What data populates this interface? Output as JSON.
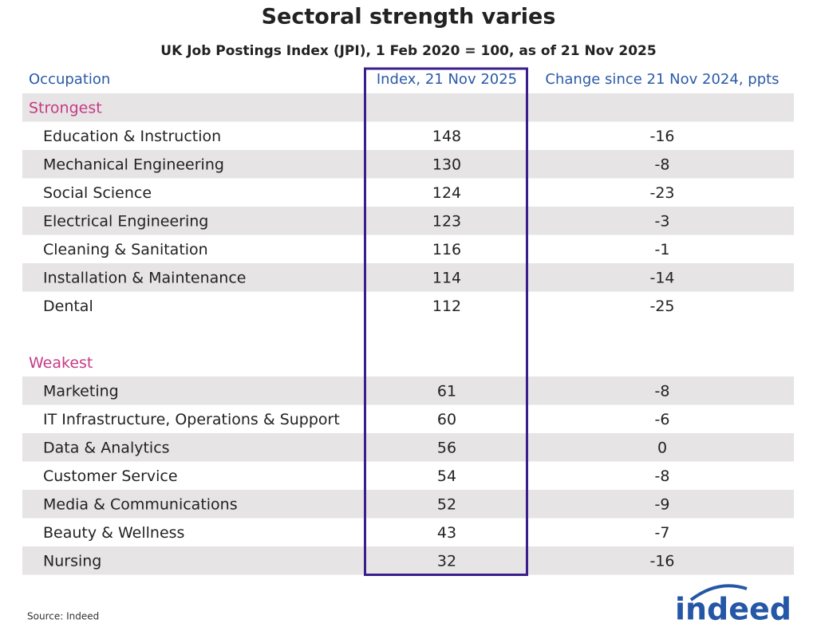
{
  "header": {
    "title": "Sectoral strength varies",
    "subtitle": "UK Job Postings Index (JPI), 1 Feb 2020 = 100, as of 21 Nov 2025"
  },
  "table": {
    "columns": [
      "Occupation",
      "Index, 21 Nov 2025",
      "Change since 21 Nov 2024, ppts"
    ],
    "sections": [
      {
        "label": "Strongest",
        "rows": [
          [
            "Education & Instruction",
            148,
            -16
          ],
          [
            "Mechanical Engineering",
            130,
            -8
          ],
          [
            "Social Science",
            124,
            -23
          ],
          [
            "Electrical Engineering",
            123,
            -3
          ],
          [
            "Cleaning & Sanitation",
            116,
            -1
          ],
          [
            "Installation & Maintenance",
            114,
            -14
          ],
          [
            "Dental",
            112,
            -25
          ]
        ]
      },
      {
        "label": "Weakest",
        "rows": [
          [
            "Marketing",
            61,
            -8
          ],
          [
            "IT Infrastructure, Operations & Support",
            60,
            -6
          ],
          [
            "Data & Analytics",
            56,
            0
          ],
          [
            "Customer Service",
            54,
            -8
          ],
          [
            "Media & Communications",
            52,
            -9
          ],
          [
            "Beauty & Wellness",
            43,
            -7
          ],
          [
            "Nursing",
            32,
            -16
          ]
        ]
      }
    ]
  },
  "footer": {
    "source": "Source: Indeed",
    "logo": "indeed"
  }
}
